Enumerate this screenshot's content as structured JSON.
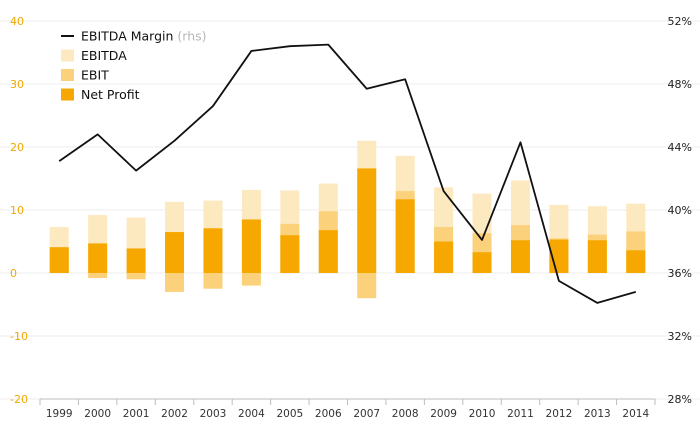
{
  "chart_data": {
    "type": "bar",
    "categories": [
      "1999",
      "2000",
      "2001",
      "2002",
      "2003",
      "2004",
      "2005",
      "2006",
      "2007",
      "2008",
      "2009",
      "2010",
      "2011",
      "2012",
      "2013",
      "2014"
    ],
    "series": [
      {
        "name": "EBITDA",
        "type": "bar",
        "axis": "left",
        "color": "#fde9bf",
        "values": [
          7.3,
          9.2,
          8.8,
          11.3,
          11.5,
          13.2,
          13.1,
          14.2,
          21.0,
          18.6,
          13.6,
          12.6,
          14.7,
          10.8,
          10.6,
          11.0
        ]
      },
      {
        "name": "EBIT",
        "type": "bar",
        "axis": "left",
        "color": "#fbd27b",
        "values": [
          4.0,
          -0.8,
          -1.0,
          -3.0,
          -2.5,
          -2.0,
          7.8,
          9.8,
          -4.0,
          13.0,
          7.3,
          6.3,
          7.6,
          5.5,
          6.1,
          6.6
        ]
      },
      {
        "name": "Net Profit",
        "type": "bar",
        "axis": "left",
        "color": "#f7a800",
        "values": [
          4.1,
          4.7,
          3.9,
          6.5,
          7.1,
          8.5,
          6.0,
          6.8,
          16.6,
          11.7,
          5.0,
          3.3,
          5.2,
          5.3,
          5.2,
          3.6
        ]
      },
      {
        "name": "EBITDA Margin",
        "name_note": "(rhs)",
        "type": "line",
        "axis": "right",
        "color": "#111111",
        "values": [
          43.1,
          44.8,
          42.5,
          44.4,
          46.6,
          50.1,
          50.4,
          50.5,
          47.7,
          48.3,
          41.2,
          38.1,
          44.3,
          35.5,
          34.1,
          34.8
        ]
      }
    ],
    "y_left": {
      "ticks": [
        40,
        30,
        20,
        10,
        0,
        -10,
        -20
      ],
      "range": [
        -20,
        40
      ],
      "color": "#f0a800"
    },
    "y_right": {
      "ticks": [
        "52%",
        "48%",
        "44%",
        "40%",
        "36%",
        "32%",
        "28%"
      ],
      "range": [
        28,
        52
      ]
    },
    "grid": true,
    "legend": "top-left"
  }
}
